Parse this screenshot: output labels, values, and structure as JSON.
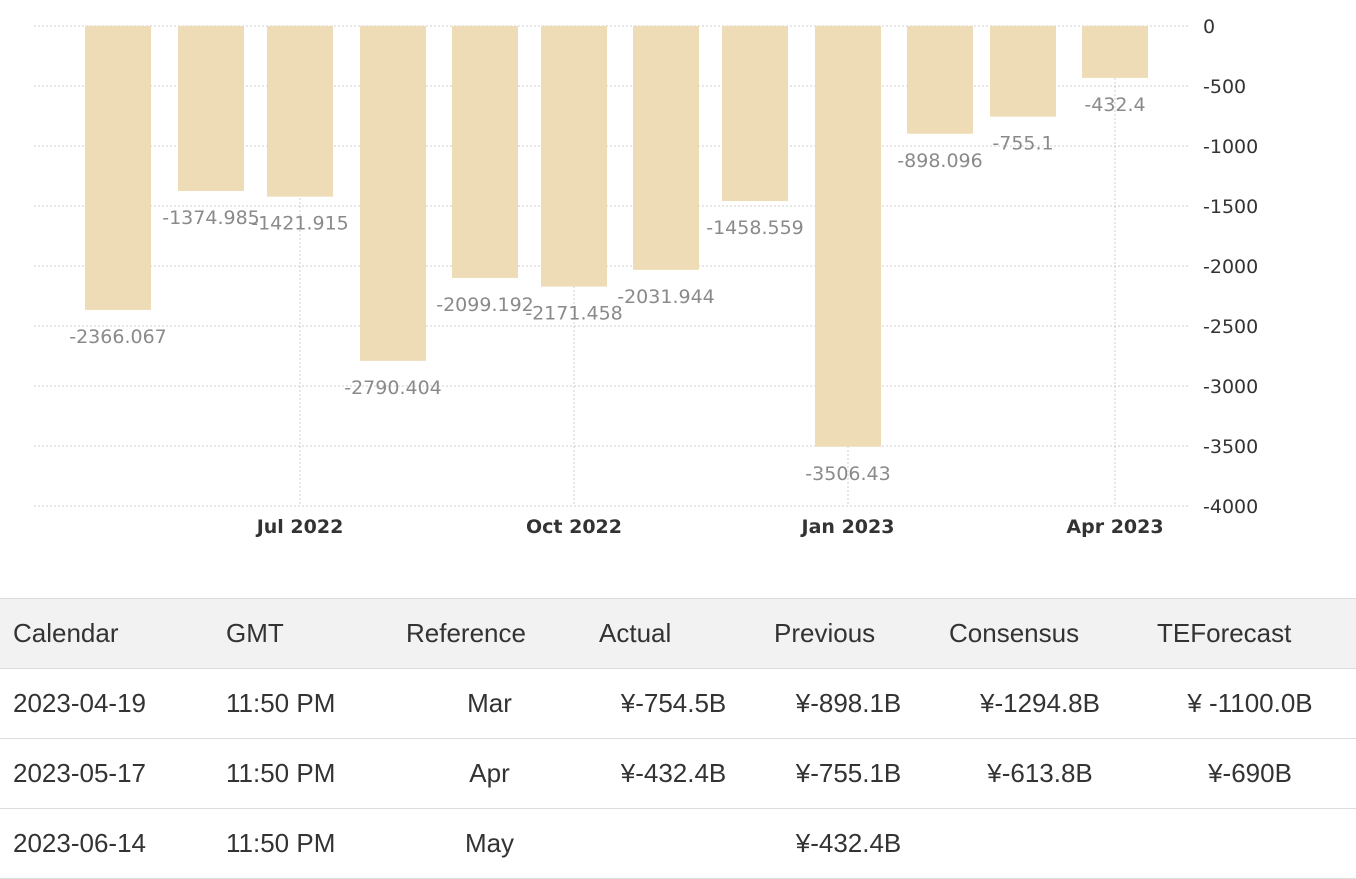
{
  "chart_data": {
    "type": "bar",
    "categories": [
      "2022-05",
      "2022-06",
      "2022-07",
      "2022-08",
      "2022-09",
      "2022-10",
      "2022-11",
      "2022-12",
      "2023-01",
      "2023-02",
      "2023-03",
      "2023-04"
    ],
    "values": [
      -2366.067,
      -1374.985,
      -1421.915,
      -2790.404,
      -2099.192,
      -2171.458,
      -2031.944,
      -1458.559,
      -3506.43,
      -898.096,
      -755.1,
      -432.4
    ],
    "value_labels": [
      "-2366.067",
      "-1374.985",
      "-1421.915",
      "-2790.404",
      "-2099.192",
      "-2171.458",
      "-2031.944",
      "-1458.559",
      "-3506.43",
      "-898.096",
      "-755.1",
      "-432.4"
    ],
    "x_tick_labels": [
      {
        "category": "2022-07",
        "label": "Jul 2022"
      },
      {
        "category": "2022-10",
        "label": "Oct 2022"
      },
      {
        "category": "2023-01",
        "label": "Jan 2023"
      },
      {
        "category": "2023-04",
        "label": "Apr 2023"
      }
    ],
    "y_ticks": [
      0,
      -500,
      -1000,
      -1500,
      -2000,
      -2500,
      -3000,
      -3500,
      -4000
    ],
    "ylim": [
      -4000,
      0
    ],
    "grid": true,
    "y_axis_side": "right",
    "bar_color": "#eddcb5",
    "title": "",
    "xlabel": "",
    "ylabel": ""
  },
  "table": {
    "headers": [
      "Calendar",
      "GMT",
      "Reference",
      "Actual",
      "Previous",
      "Consensus",
      "TEForecast"
    ],
    "rows": [
      [
        "2023-04-19",
        "11:50 PM",
        "Mar",
        "¥-754.5B",
        "¥-898.1B",
        "¥-1294.8B",
        "¥ -1100.0B"
      ],
      [
        "2023-05-17",
        "11:50 PM",
        "Apr",
        "¥-432.4B",
        "¥-755.1B",
        "¥-613.8B",
        "¥-690B"
      ],
      [
        "2023-06-14",
        "11:50 PM",
        "May",
        "",
        "¥-432.4B",
        "",
        ""
      ]
    ]
  }
}
